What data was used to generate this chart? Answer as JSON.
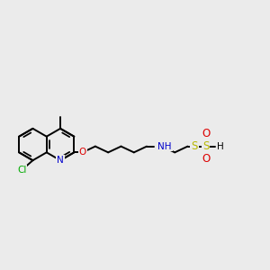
{
  "background_color": "#ebebeb",
  "fig_width": 3.0,
  "fig_height": 3.0,
  "dpi": 100,
  "bond_color": "#000000",
  "bond_lw": 1.4,
  "colors": {
    "N": "#0000cc",
    "O": "#dd0000",
    "Cl": "#00aa00",
    "S": "#b8b800",
    "H": "#000000",
    "C": "#000000"
  },
  "font_size": 7.5,
  "font_size_small": 6.5
}
